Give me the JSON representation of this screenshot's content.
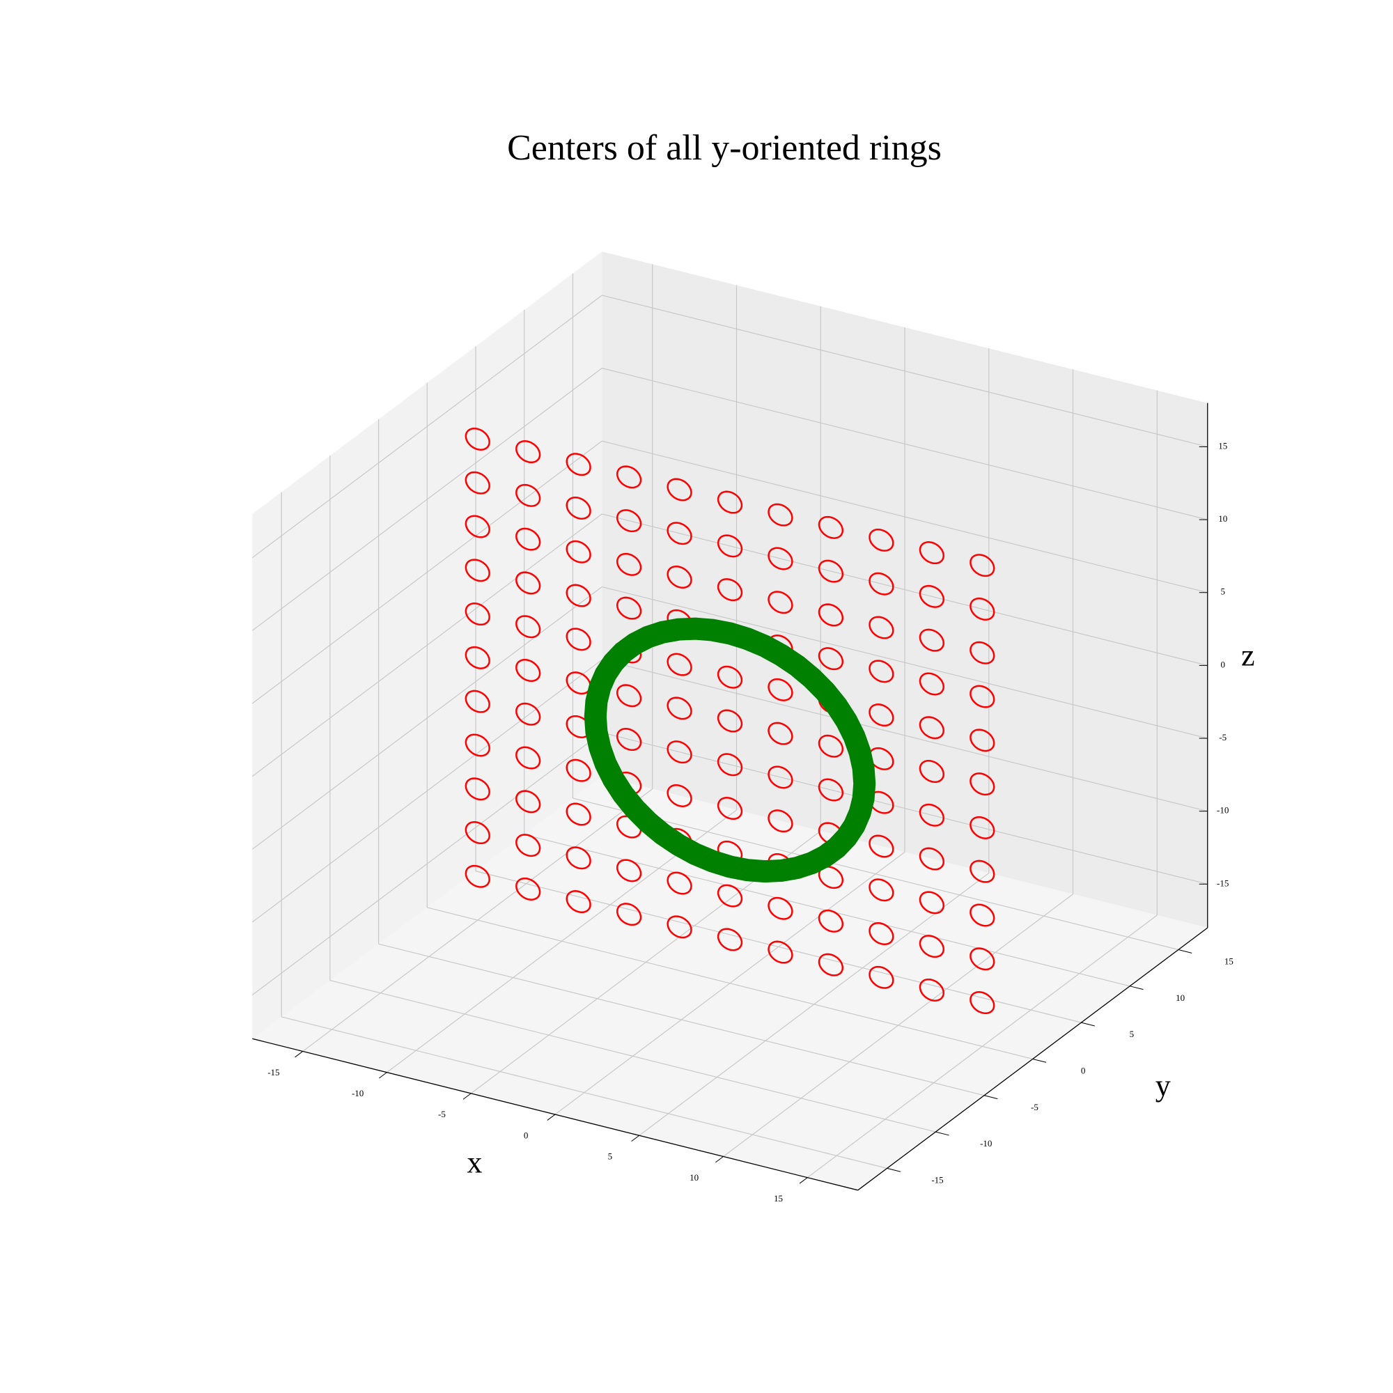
{
  "chart_data": {
    "type": "ring3d",
    "title": "Centers of all y-oriented rings",
    "xlabel": "x",
    "ylabel": "y",
    "zlabel": "z",
    "xlim": [
      -18,
      18
    ],
    "ylim": [
      -18,
      18
    ],
    "zlim": [
      -18,
      18
    ],
    "xticks": [
      -15,
      -10,
      -5,
      0,
      5,
      10,
      15
    ],
    "yticks": [
      -15,
      -10,
      -5,
      0,
      5,
      10,
      15
    ],
    "zticks": [
      -15,
      -10,
      -5,
      0,
      5,
      10,
      15
    ],
    "grid": true,
    "series": [
      {
        "color": "#ff0000",
        "radius": 0.7,
        "stroke_width": 2.5,
        "x": [
          -15,
          -12,
          -9,
          -6,
          -3,
          0,
          3,
          6,
          9,
          12,
          15,
          -15,
          -12,
          -9,
          -6,
          -3,
          0,
          3,
          6,
          9,
          12,
          15,
          -15,
          -12,
          -9,
          -6,
          -3,
          0,
          3,
          6,
          9,
          12,
          15,
          -15,
          -12,
          -9,
          -6,
          -3,
          0,
          3,
          6,
          9,
          12,
          15,
          -15,
          -12,
          -9,
          -6,
          -3,
          0,
          3,
          6,
          9,
          12,
          15,
          -15,
          -12,
          -9,
          -6,
          -3,
          0,
          3,
          6,
          9,
          12,
          15,
          -15,
          -12,
          -9,
          -6,
          -3,
          0,
          3,
          6,
          9,
          12,
          15,
          -15,
          -12,
          -9,
          -6,
          -3,
          0,
          3,
          6,
          9,
          12,
          15,
          -15,
          -12,
          -9,
          -6,
          -3,
          0,
          3,
          6,
          9,
          12,
          15,
          -15,
          -12,
          -9,
          -6,
          -3,
          0,
          3,
          6,
          9,
          12,
          15,
          -15,
          -12,
          -9,
          -6,
          -3,
          0,
          3,
          6,
          9,
          12,
          15
        ],
        "y": [
          0,
          0,
          0,
          0,
          0,
          0,
          0,
          0,
          0,
          0,
          0,
          0,
          0,
          0,
          0,
          0,
          0,
          0,
          0,
          0,
          0,
          0,
          0,
          0,
          0,
          0,
          0,
          0,
          0,
          0,
          0,
          0,
          0,
          0,
          0,
          0,
          0,
          0,
          0,
          0,
          0,
          0,
          0,
          0,
          0,
          0,
          0,
          0,
          0,
          0,
          0,
          0,
          0,
          0,
          0,
          0,
          0,
          0,
          0,
          0,
          0,
          0,
          0,
          0,
          0,
          0,
          0,
          0,
          0,
          0,
          0,
          0,
          0,
          0,
          0,
          0,
          0,
          0,
          0,
          0,
          0,
          0,
          0,
          0,
          0,
          0,
          0,
          0,
          0,
          0,
          0,
          0,
          0,
          0,
          0,
          0,
          0,
          0,
          0,
          0,
          0,
          0,
          0,
          0,
          0,
          0,
          0,
          0,
          0,
          0,
          0,
          0,
          0,
          0,
          0,
          0,
          0,
          0,
          0,
          0,
          0
        ],
        "z": [
          -15,
          -15,
          -15,
          -15,
          -15,
          -15,
          -15,
          -15,
          -15,
          -15,
          -15,
          -12,
          -12,
          -12,
          -12,
          -12,
          -12,
          -12,
          -12,
          -12,
          -12,
          -12,
          -9,
          -9,
          -9,
          -9,
          -9,
          -9,
          -9,
          -9,
          -9,
          -9,
          -9,
          -6,
          -6,
          -6,
          -6,
          -6,
          -6,
          -6,
          -6,
          -6,
          -6,
          -6,
          -3,
          -3,
          -3,
          -3,
          -3,
          -3,
          -3,
          -3,
          -3,
          -3,
          -3,
          0,
          0,
          0,
          0,
          0,
          0,
          0,
          0,
          0,
          0,
          0,
          3,
          3,
          3,
          3,
          3,
          3,
          3,
          3,
          3,
          3,
          3,
          6,
          6,
          6,
          6,
          6,
          6,
          6,
          6,
          6,
          6,
          6,
          9,
          9,
          9,
          9,
          9,
          9,
          9,
          9,
          9,
          9,
          9,
          12,
          12,
          12,
          12,
          12,
          12,
          12,
          12,
          12,
          12,
          12,
          15,
          15,
          15,
          15,
          15,
          15,
          15,
          15,
          15,
          15,
          15
        ]
      },
      {
        "color": "#008000",
        "radius": 8,
        "stroke_width": 32,
        "x": [
          0
        ],
        "y": [
          0
        ],
        "z": [
          -2
        ]
      }
    ]
  }
}
